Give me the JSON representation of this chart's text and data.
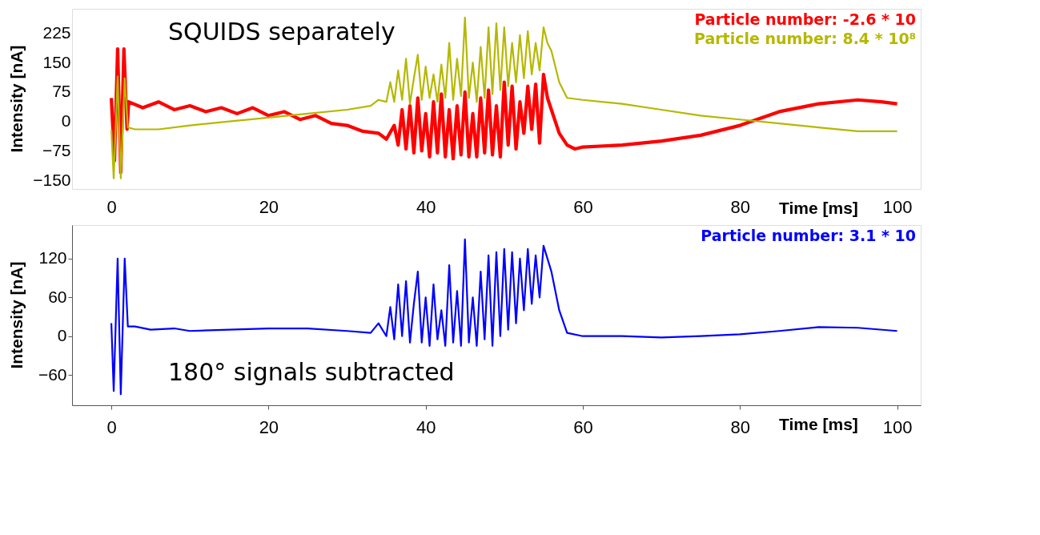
{
  "chart_data": [
    {
      "type": "line",
      "xlabel": "Time [ms]",
      "ylabel": "Intensity [nA]",
      "xlim": [
        -5,
        103
      ],
      "xticks": [
        0,
        20,
        40,
        60,
        80,
        100
      ],
      "ylim": [
        -172,
        287
      ],
      "yticks": [
        -150,
        -75,
        0,
        75,
        150,
        225
      ],
      "legend": "top right",
      "grid": false,
      "annotations": [
        "SQUIDS separately"
      ],
      "series": [
        {
          "name": "Particle number: -2.6 * 10",
          "color": "#ff0000",
          "x": [
            0,
            0.4,
            0.8,
            1.2,
            1.6,
            2.0,
            2.2,
            4,
            6,
            8,
            10,
            12,
            14,
            16,
            18,
            20,
            22,
            24,
            26,
            28,
            30,
            32,
            34,
            35,
            36,
            36.5,
            37,
            37.5,
            38,
            38.5,
            39,
            39.5,
            40,
            40.5,
            41,
            41.5,
            42,
            42.5,
            43,
            43.5,
            44,
            44.5,
            45,
            45.5,
            46,
            46.5,
            47,
            47.5,
            48,
            48.5,
            49,
            49.5,
            50,
            50.5,
            51,
            51.5,
            52,
            52.5,
            53,
            53.5,
            54,
            54.5,
            55,
            55.5,
            56,
            57,
            58,
            59,
            60,
            65,
            70,
            75,
            80,
            85,
            90,
            95,
            98,
            100
          ],
          "values": [
            60,
            -100,
            185,
            -130,
            185,
            -20,
            50,
            35,
            50,
            30,
            40,
            25,
            35,
            20,
            35,
            15,
            25,
            5,
            15,
            -5,
            -10,
            -25,
            -30,
            -45,
            -10,
            -60,
            30,
            -70,
            40,
            -80,
            60,
            -75,
            20,
            -90,
            50,
            -80,
            70,
            -90,
            30,
            -95,
            40,
            -85,
            75,
            -90,
            20,
            -90,
            60,
            -80,
            80,
            -85,
            40,
            -90,
            100,
            -60,
            90,
            -70,
            50,
            -30,
            90,
            -20,
            95,
            -55,
            120,
            60,
            30,
            -30,
            -60,
            -70,
            -65,
            -60,
            -50,
            -35,
            -10,
            25,
            45,
            55,
            50,
            45
          ]
        },
        {
          "name": "Particle number: 8.4 * 10⁸",
          "color": "#b5b800",
          "x": [
            0,
            0.3,
            0.8,
            1.2,
            1.7,
            2.1,
            3,
            6,
            10,
            15,
            20,
            25,
            30,
            33,
            34,
            35,
            35.5,
            36,
            36.5,
            37,
            37.5,
            38,
            38.5,
            39,
            39.5,
            40,
            40.5,
            41,
            41.5,
            42,
            42.5,
            43,
            43.5,
            44,
            44.5,
            45,
            45.5,
            46,
            46.5,
            47,
            47.5,
            48,
            48.5,
            49,
            49.5,
            50,
            50.5,
            51,
            51.5,
            52,
            52.5,
            53,
            53.5,
            54,
            54.5,
            55,
            55.5,
            56,
            57,
            58,
            60,
            65,
            70,
            75,
            80,
            85,
            90,
            95,
            100
          ],
          "values": [
            -20,
            -145,
            115,
            -145,
            110,
            -15,
            -20,
            -20,
            -10,
            0,
            10,
            20,
            30,
            40,
            55,
            50,
            100,
            50,
            130,
            55,
            160,
            45,
            110,
            170,
            55,
            140,
            60,
            120,
            50,
            145,
            60,
            200,
            55,
            160,
            65,
            265,
            60,
            150,
            50,
            190,
            60,
            240,
            70,
            250,
            80,
            240,
            90,
            200,
            100,
            220,
            110,
            230,
            120,
            200,
            130,
            240,
            200,
            180,
            100,
            60,
            55,
            45,
            30,
            15,
            5,
            -5,
            -15,
            -25,
            -25
          ]
        }
      ]
    },
    {
      "type": "line",
      "xlabel": "Time [ms]",
      "ylabel": "Intensity [nA]",
      "xlim": [
        -5,
        103
      ],
      "xticks": [
        0,
        20,
        40,
        60,
        80,
        100
      ],
      "ylim": [
        -107,
        172
      ],
      "yticks": [
        -60,
        0,
        60,
        120
      ],
      "legend": "top right",
      "grid": false,
      "annotations": [
        "180° signals subtracted"
      ],
      "series": [
        {
          "name": "Particle number: 3.1 * 10",
          "color": "#0000ff",
          "x": [
            0,
            0.3,
            0.8,
            1.2,
            1.7,
            2.1,
            3,
            5,
            8,
            10,
            15,
            20,
            25,
            30,
            33,
            34,
            35,
            35.5,
            36,
            36.5,
            37,
            37.5,
            38,
            38.5,
            39,
            39.5,
            40,
            40.5,
            41,
            41.5,
            42,
            42.5,
            43,
            43.5,
            44,
            44.5,
            45,
            45.5,
            46,
            46.5,
            47,
            47.5,
            48,
            48.5,
            49,
            49.5,
            50,
            50.5,
            51,
            51.5,
            52,
            52.5,
            53,
            53.5,
            54,
            54.5,
            55,
            55.5,
            56,
            57,
            58,
            60,
            65,
            70,
            75,
            80,
            85,
            90,
            95,
            100
          ],
          "values": [
            20,
            -85,
            120,
            -90,
            120,
            15,
            15,
            10,
            12,
            8,
            10,
            12,
            12,
            8,
            5,
            20,
            0,
            45,
            -5,
            80,
            0,
            85,
            -10,
            50,
            100,
            -10,
            60,
            -15,
            80,
            -5,
            40,
            -15,
            110,
            -10,
            70,
            -15,
            150,
            -10,
            60,
            -15,
            100,
            -5,
            125,
            -15,
            130,
            0,
            135,
            10,
            130,
            20,
            120,
            40,
            135,
            50,
            125,
            60,
            140,
            120,
            100,
            40,
            5,
            0,
            0,
            -2,
            0,
            3,
            8,
            14,
            13,
            8
          ]
        }
      ]
    }
  ]
}
